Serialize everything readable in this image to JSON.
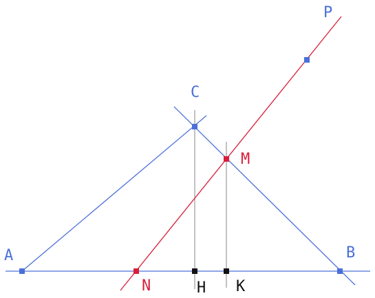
{
  "colors": {
    "blue": "#4a6fd8",
    "red": "#d81e3a",
    "black": "#111111",
    "gray": "#9a9a9a",
    "background": "#ffffff"
  },
  "points": {
    "A": "A",
    "B": "B",
    "C": "C",
    "M": "M",
    "N": "N",
    "P": "P",
    "H": "H",
    "K": "K"
  }
}
